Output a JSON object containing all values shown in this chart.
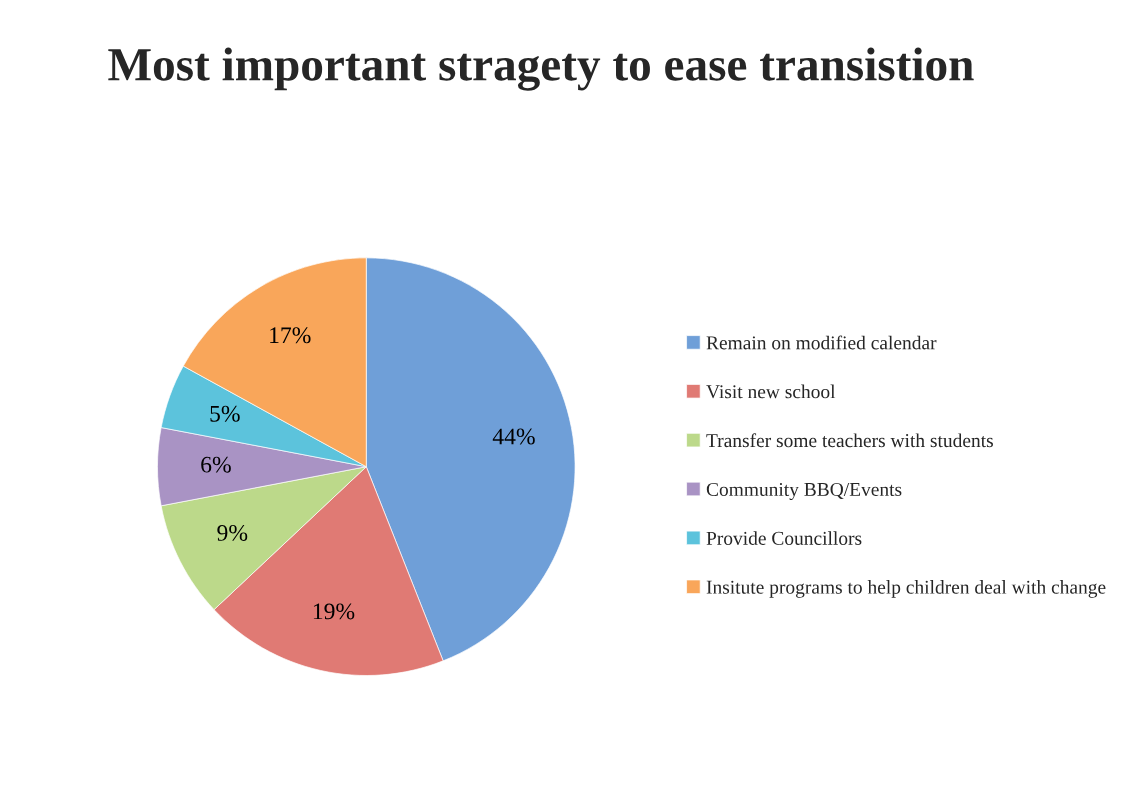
{
  "chart_data": {
    "type": "pie",
    "title": "Most important stragety to ease transistion",
    "categories": [
      "Remain on modified calendar",
      "Visit new school",
      "Transfer some teachers with students",
      "Community BBQ/Events",
      "Provide Councillors",
      "Insitute programs to help children deal with change"
    ],
    "values": [
      44,
      19,
      9,
      6,
      5,
      17
    ],
    "colors": [
      "#6f9fd8",
      "#e07a74",
      "#bcd98a",
      "#a993c4",
      "#5cc3dc",
      "#f9a65a"
    ],
    "value_labels": [
      "44%",
      "19%",
      "9%",
      "6%",
      "5%",
      "17%"
    ],
    "legend": "right"
  }
}
